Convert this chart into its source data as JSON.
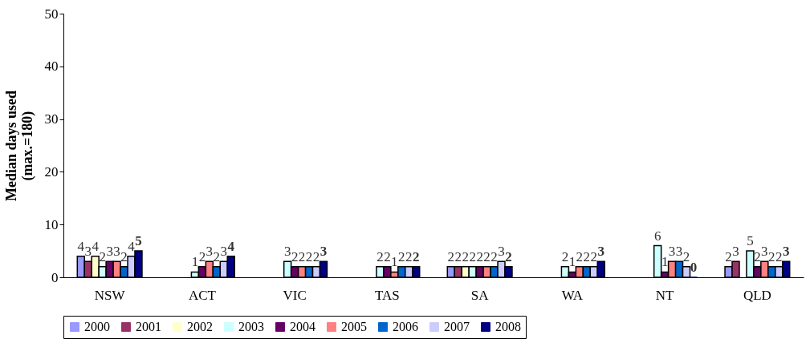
{
  "chart_data": {
    "type": "bar",
    "ylabel": "Median days used\n(max.=180)",
    "categories": [
      "NSW",
      "ACT",
      "VIC",
      "TAS",
      "SA",
      "WA",
      "NT",
      "QLD"
    ],
    "series": [
      {
        "name": "2000",
        "color": "#9999ff",
        "values": [
          4,
          null,
          null,
          null,
          2,
          null,
          null,
          2
        ]
      },
      {
        "name": "2001",
        "color": "#993366",
        "values": [
          3,
          null,
          null,
          null,
          2,
          null,
          null,
          3
        ]
      },
      {
        "name": "2002",
        "color": "#ffffcc",
        "values": [
          4,
          null,
          null,
          null,
          2,
          null,
          null,
          null
        ]
      },
      {
        "name": "2003",
        "color": "#ccffff",
        "values": [
          2,
          1,
          3,
          2,
          2,
          2,
          6,
          5
        ]
      },
      {
        "name": "2004",
        "color": "#660066",
        "values": [
          3,
          2,
          2,
          2,
          2,
          1,
          1,
          2
        ]
      },
      {
        "name": "2005",
        "color": "#ff8080",
        "values": [
          3,
          3,
          2,
          1,
          2,
          2,
          3,
          3
        ]
      },
      {
        "name": "2006",
        "color": "#0066cc",
        "values": [
          2,
          2,
          2,
          2,
          2,
          2,
          3,
          2
        ]
      },
      {
        "name": "2007",
        "color": "#ccccff",
        "values": [
          4,
          3,
          2,
          2,
          3,
          2,
          2,
          2
        ]
      },
      {
        "name": "2008",
        "color": "#000080",
        "values": [
          5,
          4,
          3,
          2,
          2,
          3,
          0,
          3
        ]
      }
    ],
    "ylim": [
      0,
      50
    ],
    "yticks": [
      0,
      10,
      20,
      30,
      40,
      50
    ],
    "grid": false,
    "legend": "bottom",
    "data_labels": true
  }
}
